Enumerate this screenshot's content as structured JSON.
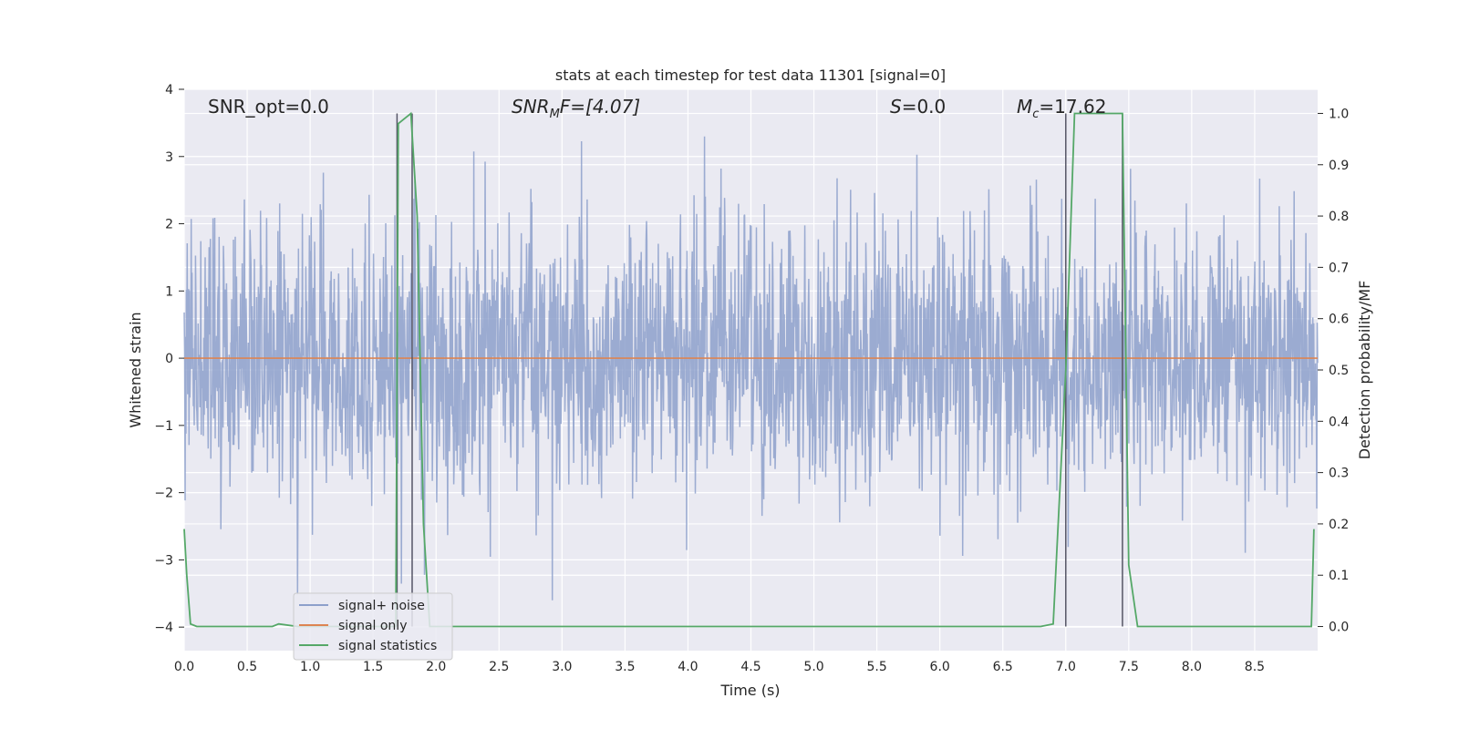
{
  "chart_data": {
    "type": "line",
    "title": "stats at each timestep for test data 11301 [signal=0]",
    "xlabel": "Time (s)",
    "ylabel": "Whitened strain",
    "ylabel_right": "Detection probability/MF",
    "xlim": [
      0.0,
      9.0
    ],
    "ylim": [
      -4.35,
      4.0
    ],
    "ylim_right": [
      -0.047,
      1.047
    ],
    "x_ticks": [
      "0.0",
      "0.5",
      "1.0",
      "1.5",
      "2.0",
      "2.5",
      "3.0",
      "3.5",
      "4.0",
      "4.5",
      "5.0",
      "5.5",
      "6.0",
      "6.5",
      "7.0",
      "7.5",
      "8.0",
      "8.5"
    ],
    "y_ticks": [
      "4",
      "3",
      "2",
      "1",
      "0",
      "−1",
      "−2",
      "−3",
      "−4"
    ],
    "y_ticks_right": [
      "1.0",
      "0.9",
      "0.8",
      "0.7",
      "0.6",
      "0.5",
      "0.4",
      "0.3",
      "0.2",
      "0.1",
      "0.0"
    ],
    "grid": true,
    "legend_position": "lower-left",
    "annotations": {
      "snr_opt": "SNR_opt=0.0",
      "snr_mf_main": "SNR",
      "snr_mf_sub": "M",
      "snr_mf_rest": "F=[4.07]",
      "s_var": "S",
      "s_rest": "=0.0",
      "mc_main": "M",
      "mc_sub": "c",
      "mc_rest": "=17.62"
    },
    "series": [
      {
        "name": "signal+ noise",
        "color": "#8da0cb",
        "description_shape": "white gaussian noise, mostly within ±2, peaks to about ±3.6",
        "amplitude_typical": 1.35,
        "amplitude_peak": 3.6
      },
      {
        "name": "signal only",
        "color": "#dd8452",
        "x": [
          0.0,
          9.0
        ],
        "y": [
          0.0,
          0.0
        ]
      },
      {
        "name": "signal statistics",
        "color": "#55a868",
        "axis": "right",
        "x": [
          0.0,
          0.02,
          0.05,
          0.1,
          0.7,
          0.75,
          0.9,
          1.65,
          1.68,
          1.7,
          1.75,
          1.8,
          1.85,
          1.9,
          1.95,
          6.8,
          6.9,
          7.0,
          7.07,
          7.1,
          7.45,
          7.5,
          7.57,
          8.95,
          8.97
        ],
        "y": [
          0.19,
          0.1,
          0.005,
          0.0,
          0.0,
          0.005,
          0.0,
          0.0,
          0.0,
          0.98,
          0.99,
          1.0,
          0.8,
          0.2,
          0.0,
          0.0,
          0.005,
          0.5,
          1.0,
          1.0,
          1.0,
          0.12,
          0.0,
          0.0,
          0.19
        ]
      }
    ],
    "vertical_markers": [
      1.69,
      1.81,
      7.0,
      7.45
    ],
    "legend": {
      "entries": [
        "signal+ noise",
        "signal only",
        "signal statistics"
      ]
    }
  }
}
